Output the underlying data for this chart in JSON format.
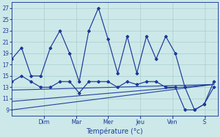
{
  "bg_color": "#cce8e8",
  "grid_color": "#aacccc",
  "line_color": "#1a3a9a",
  "xlabel": "Température (°c)",
  "yticks": [
    9,
    11,
    13,
    15,
    17,
    19,
    21,
    23,
    25,
    27
  ],
  "ylim": [
    8.0,
    28.0
  ],
  "day_labels": [
    "Dim",
    "Mar",
    "Mer",
    "Jeu",
    "Ven",
    "S"
  ],
  "day_positions": [
    1.67,
    3.34,
    5.01,
    6.68,
    8.35,
    10.02
  ],
  "xlim": [
    0,
    10.7
  ],
  "max_temps_x": [
    0.0,
    0.5,
    1.0,
    1.5,
    2.0,
    2.5,
    3.0,
    3.5,
    4.0,
    4.5,
    5.0,
    5.5,
    6.0,
    6.5,
    7.0,
    7.5,
    8.0,
    8.5,
    9.0,
    9.5,
    10.0,
    10.5
  ],
  "max_temps_y": [
    18,
    20,
    15,
    15,
    20,
    23,
    19,
    14,
    23,
    27,
    21.5,
    15.5,
    22,
    15.5,
    22,
    18,
    22,
    19,
    13,
    9,
    10,
    14
  ],
  "min_temps_x": [
    0.0,
    0.5,
    1.0,
    1.5,
    2.0,
    2.5,
    3.0,
    3.5,
    4.0,
    4.5,
    5.0,
    5.5,
    6.0,
    6.5,
    7.0,
    7.5,
    8.0,
    8.5,
    9.0,
    9.5,
    10.0,
    10.5
  ],
  "min_temps_y": [
    14,
    15,
    14,
    13,
    13,
    14,
    14,
    12,
    14,
    14,
    14,
    13,
    14,
    13.5,
    14,
    14,
    13,
    13,
    9,
    9,
    10,
    13
  ],
  "trend1_x": [
    0.0,
    10.5
  ],
  "trend1_y": [
    9.0,
    13.5
  ],
  "trend2_x": [
    0.0,
    10.5
  ],
  "trend2_y": [
    10.5,
    13.5
  ],
  "trend3_x": [
    0.0,
    10.5
  ],
  "trend3_y": [
    12.5,
    13.5
  ],
  "n_points": 22
}
